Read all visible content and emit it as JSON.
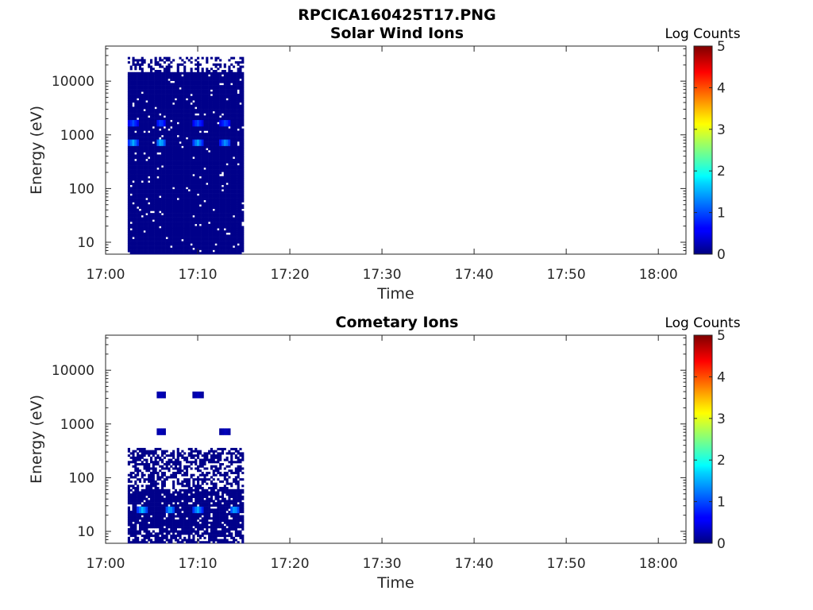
{
  "figure_title": "RPCICA160425T17.PNG",
  "chart_data": [
    {
      "type": "heatmap",
      "title": "Solar Wind Ions",
      "xlabel": "Time",
      "ylabel": "Energy (eV)",
      "yscale": "log",
      "xlim": [
        "17:00",
        "18:03"
      ],
      "ylim": [
        6,
        45000
      ],
      "x_ticks": [
        "17:00",
        "17:10",
        "17:20",
        "17:30",
        "17:40",
        "17:50",
        "18:00"
      ],
      "y_ticks": [
        "10",
        "100",
        "1000",
        "10000"
      ],
      "colorbar": {
        "title": "Log Counts",
        "ticks": [
          "0",
          "1",
          "2",
          "3",
          "4",
          "5"
        ],
        "range": [
          0,
          5
        ],
        "colormap": "jet"
      },
      "data_time_range": [
        "17:02",
        "17:15"
      ],
      "background_level": 0.05,
      "features": [
        {
          "time": "17:03",
          "energy_eV": 1600,
          "log_counts": 1.0
        },
        {
          "time": "17:03",
          "energy_eV": 750,
          "log_counts": 1.5
        },
        {
          "time": "17:06",
          "energy_eV": 1600,
          "log_counts": 1.0
        },
        {
          "time": "17:06",
          "energy_eV": 750,
          "log_counts": 1.6
        },
        {
          "time": "17:10",
          "energy_eV": 1600,
          "log_counts": 1.0
        },
        {
          "time": "17:10",
          "energy_eV": 750,
          "log_counts": 1.5
        },
        {
          "time": "17:13",
          "energy_eV": 1600,
          "log_counts": 1.0
        },
        {
          "time": "17:13",
          "energy_eV": 750,
          "log_counts": 1.4
        }
      ]
    },
    {
      "type": "heatmap",
      "title": "Cometary Ions",
      "xlabel": "Time",
      "ylabel": "Energy (eV)",
      "yscale": "log",
      "xlim": [
        "17:00",
        "18:03"
      ],
      "ylim": [
        6,
        45000
      ],
      "x_ticks": [
        "17:00",
        "17:10",
        "17:20",
        "17:30",
        "17:40",
        "17:50",
        "18:00"
      ],
      "y_ticks": [
        "10",
        "100",
        "1000",
        "10000"
      ],
      "colorbar": {
        "title": "Log Counts",
        "ticks": [
          "0",
          "1",
          "2",
          "3",
          "4",
          "5"
        ],
        "range": [
          0,
          5
        ],
        "colormap": "jet"
      },
      "data_time_range": [
        "17:02",
        "17:15"
      ],
      "background_level": 0.05,
      "features": [
        {
          "time": "17:04",
          "energy_eV": 25,
          "log_counts": 1.6
        },
        {
          "time": "17:07",
          "energy_eV": 25,
          "log_counts": 1.5
        },
        {
          "time": "17:10",
          "energy_eV": 25,
          "log_counts": 1.5
        },
        {
          "time": "17:14",
          "energy_eV": 25,
          "log_counts": 1.5
        },
        {
          "time": "17:06",
          "energy_eV": 3500,
          "log_counts": 0.3
        },
        {
          "time": "17:10",
          "energy_eV": 3500,
          "log_counts": 0.3
        },
        {
          "time": "17:06",
          "energy_eV": 750,
          "log_counts": 0.3
        },
        {
          "time": "17:13",
          "energy_eV": 750,
          "log_counts": 0.3
        }
      ]
    }
  ]
}
